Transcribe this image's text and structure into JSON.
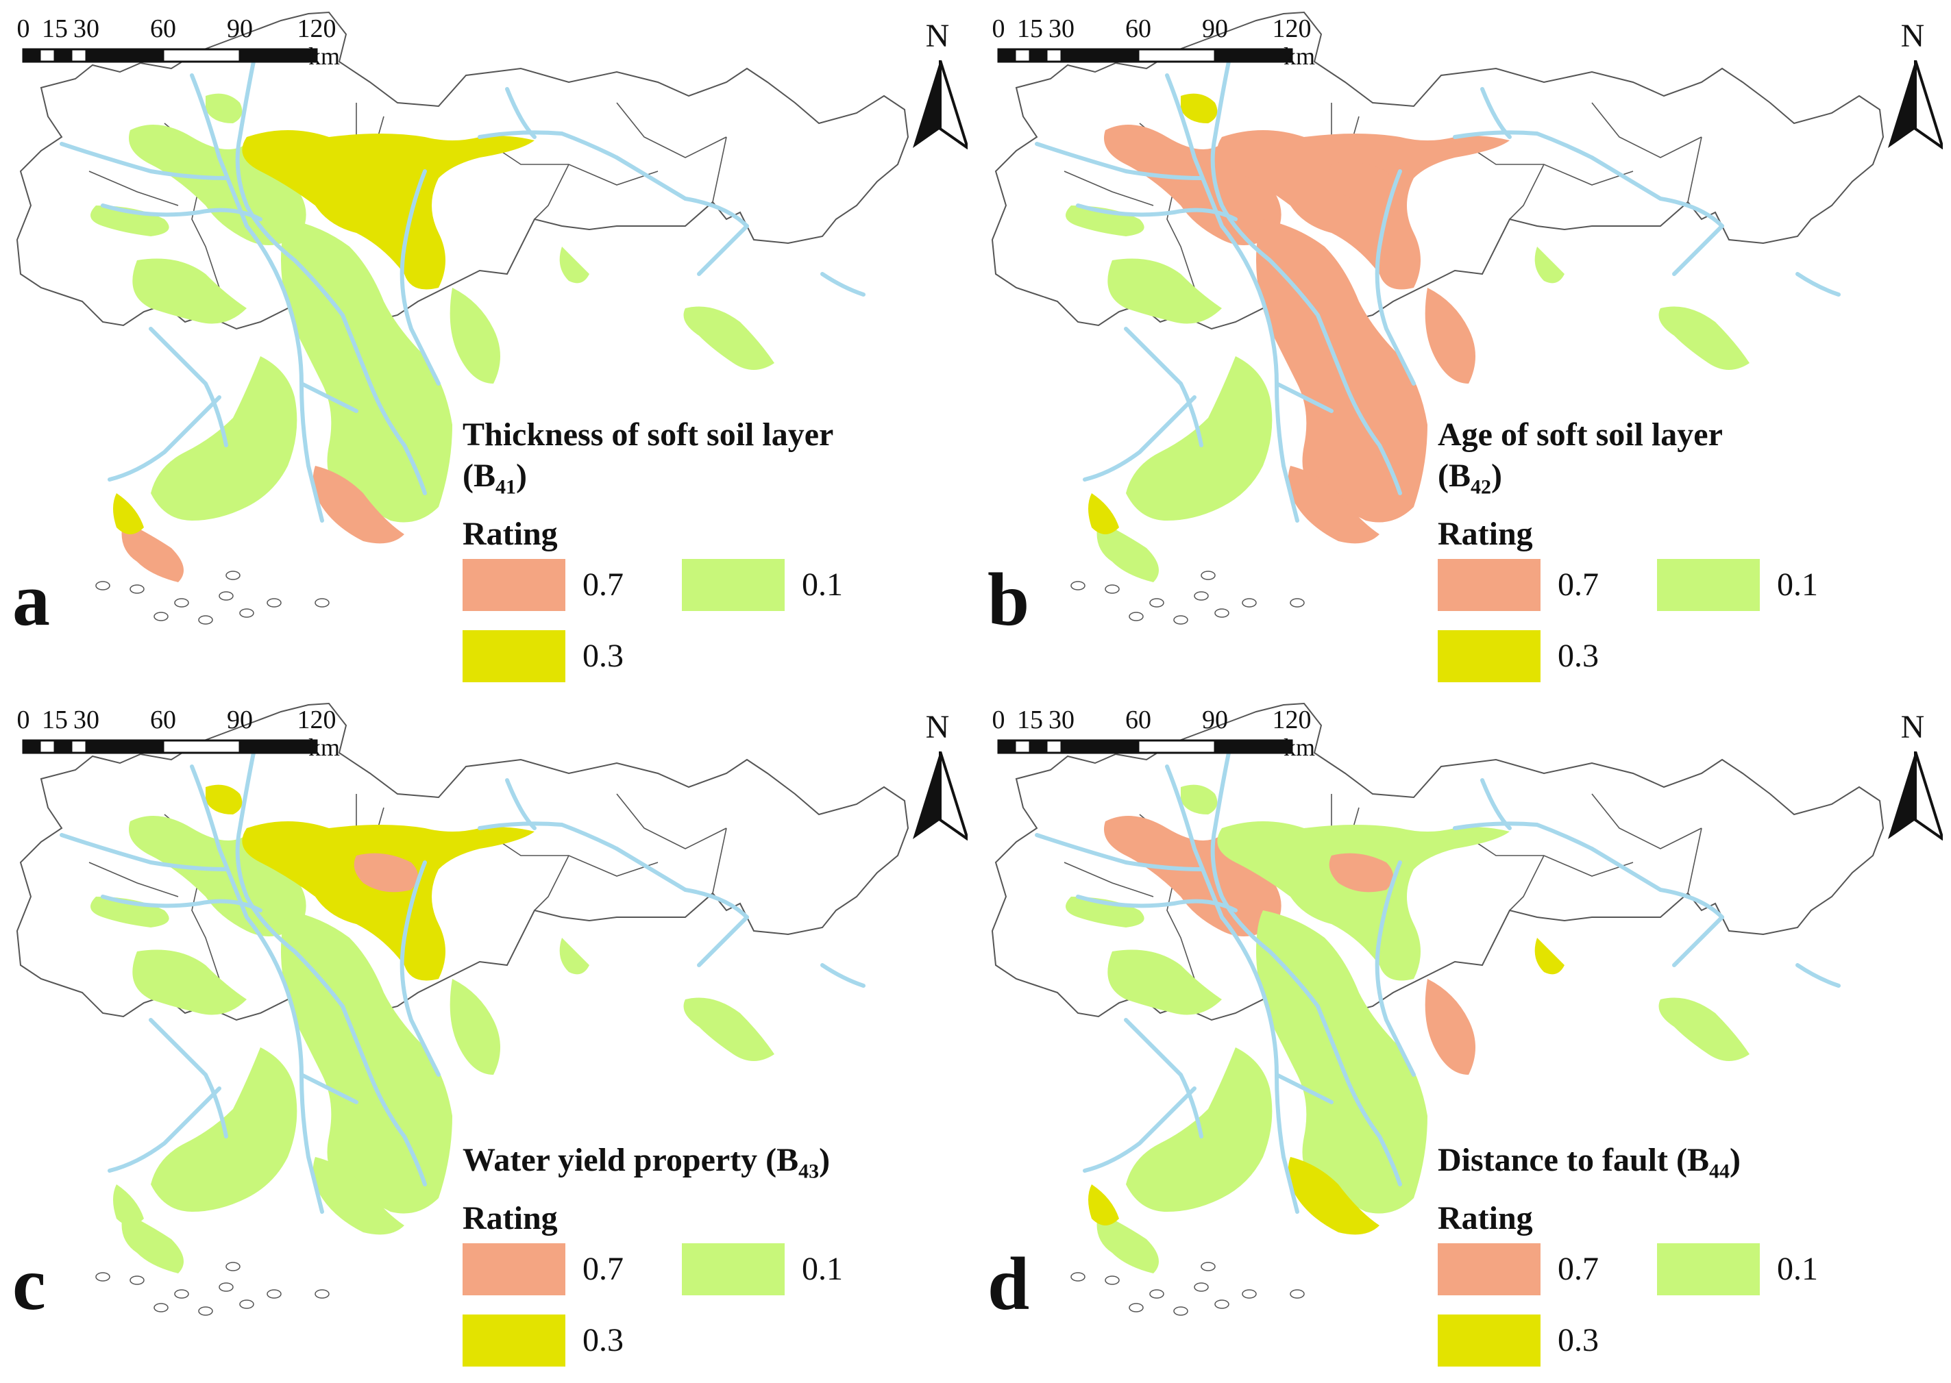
{
  "figure": {
    "rating_label": "Rating",
    "scale": {
      "ticks": [
        "0",
        "15",
        "30",
        "60",
        "90",
        "120"
      ],
      "unit": "km"
    },
    "north_label": "N",
    "colors": {
      "high": "#f4a582",
      "medium": "#e3e300",
      "low": "#c8f77a",
      "river": "#a6d8ec",
      "boundary": "#555555"
    },
    "legend_values": {
      "high": "0.7",
      "medium": "0.3",
      "low": "0.1"
    }
  },
  "panels": [
    {
      "letter": "a",
      "title": "Thickness of soft soil layer",
      "title_line2_prefix": "(B",
      "code": "41",
      "title_line2_suffix": ")"
    },
    {
      "letter": "b",
      "title": "Age of soft soil layer",
      "title_line2_prefix": "(B",
      "code": "42",
      "title_line2_suffix": ")"
    },
    {
      "letter": "c",
      "title": "Water yield property (B",
      "code": "43",
      "title_suffix": ")"
    },
    {
      "letter": "d",
      "title": "Distance to fault (B",
      "code": "44",
      "title_suffix": ")"
    }
  ]
}
